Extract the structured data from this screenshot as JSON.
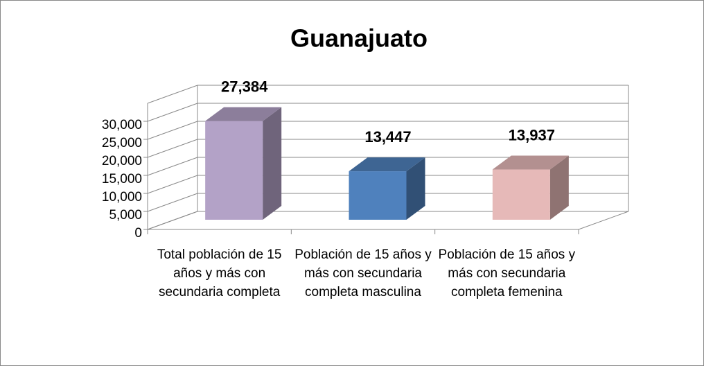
{
  "chart_data": {
    "type": "bar3d",
    "title": "Guanajuato",
    "categories": [
      "Total población de 15 años y más con secundaria completa",
      "Población de 15 años y más con secundaria completa masculina",
      "Población de 15 años y más con secundaria completa femenina"
    ],
    "values": [
      27384,
      13447,
      13937
    ],
    "value_labels": [
      "27,384",
      "13,447",
      "13,937"
    ],
    "colors": [
      "#b3a2c7",
      "#4f81bd",
      "#e6b9b8"
    ],
    "ylim": [
      0,
      35000
    ],
    "yticks": [
      0,
      {
        "value": 5000,
        "label": "5,000"
      },
      {
        "value": 10000,
        "label": "10,000"
      },
      {
        "value": 15000,
        "label": "15,000"
      },
      {
        "value": 20000,
        "label": "20,000"
      },
      {
        "value": 25000,
        "label": "25,000"
      },
      {
        "value": 30000,
        "label": "30,000"
      }
    ],
    "grid": true
  }
}
